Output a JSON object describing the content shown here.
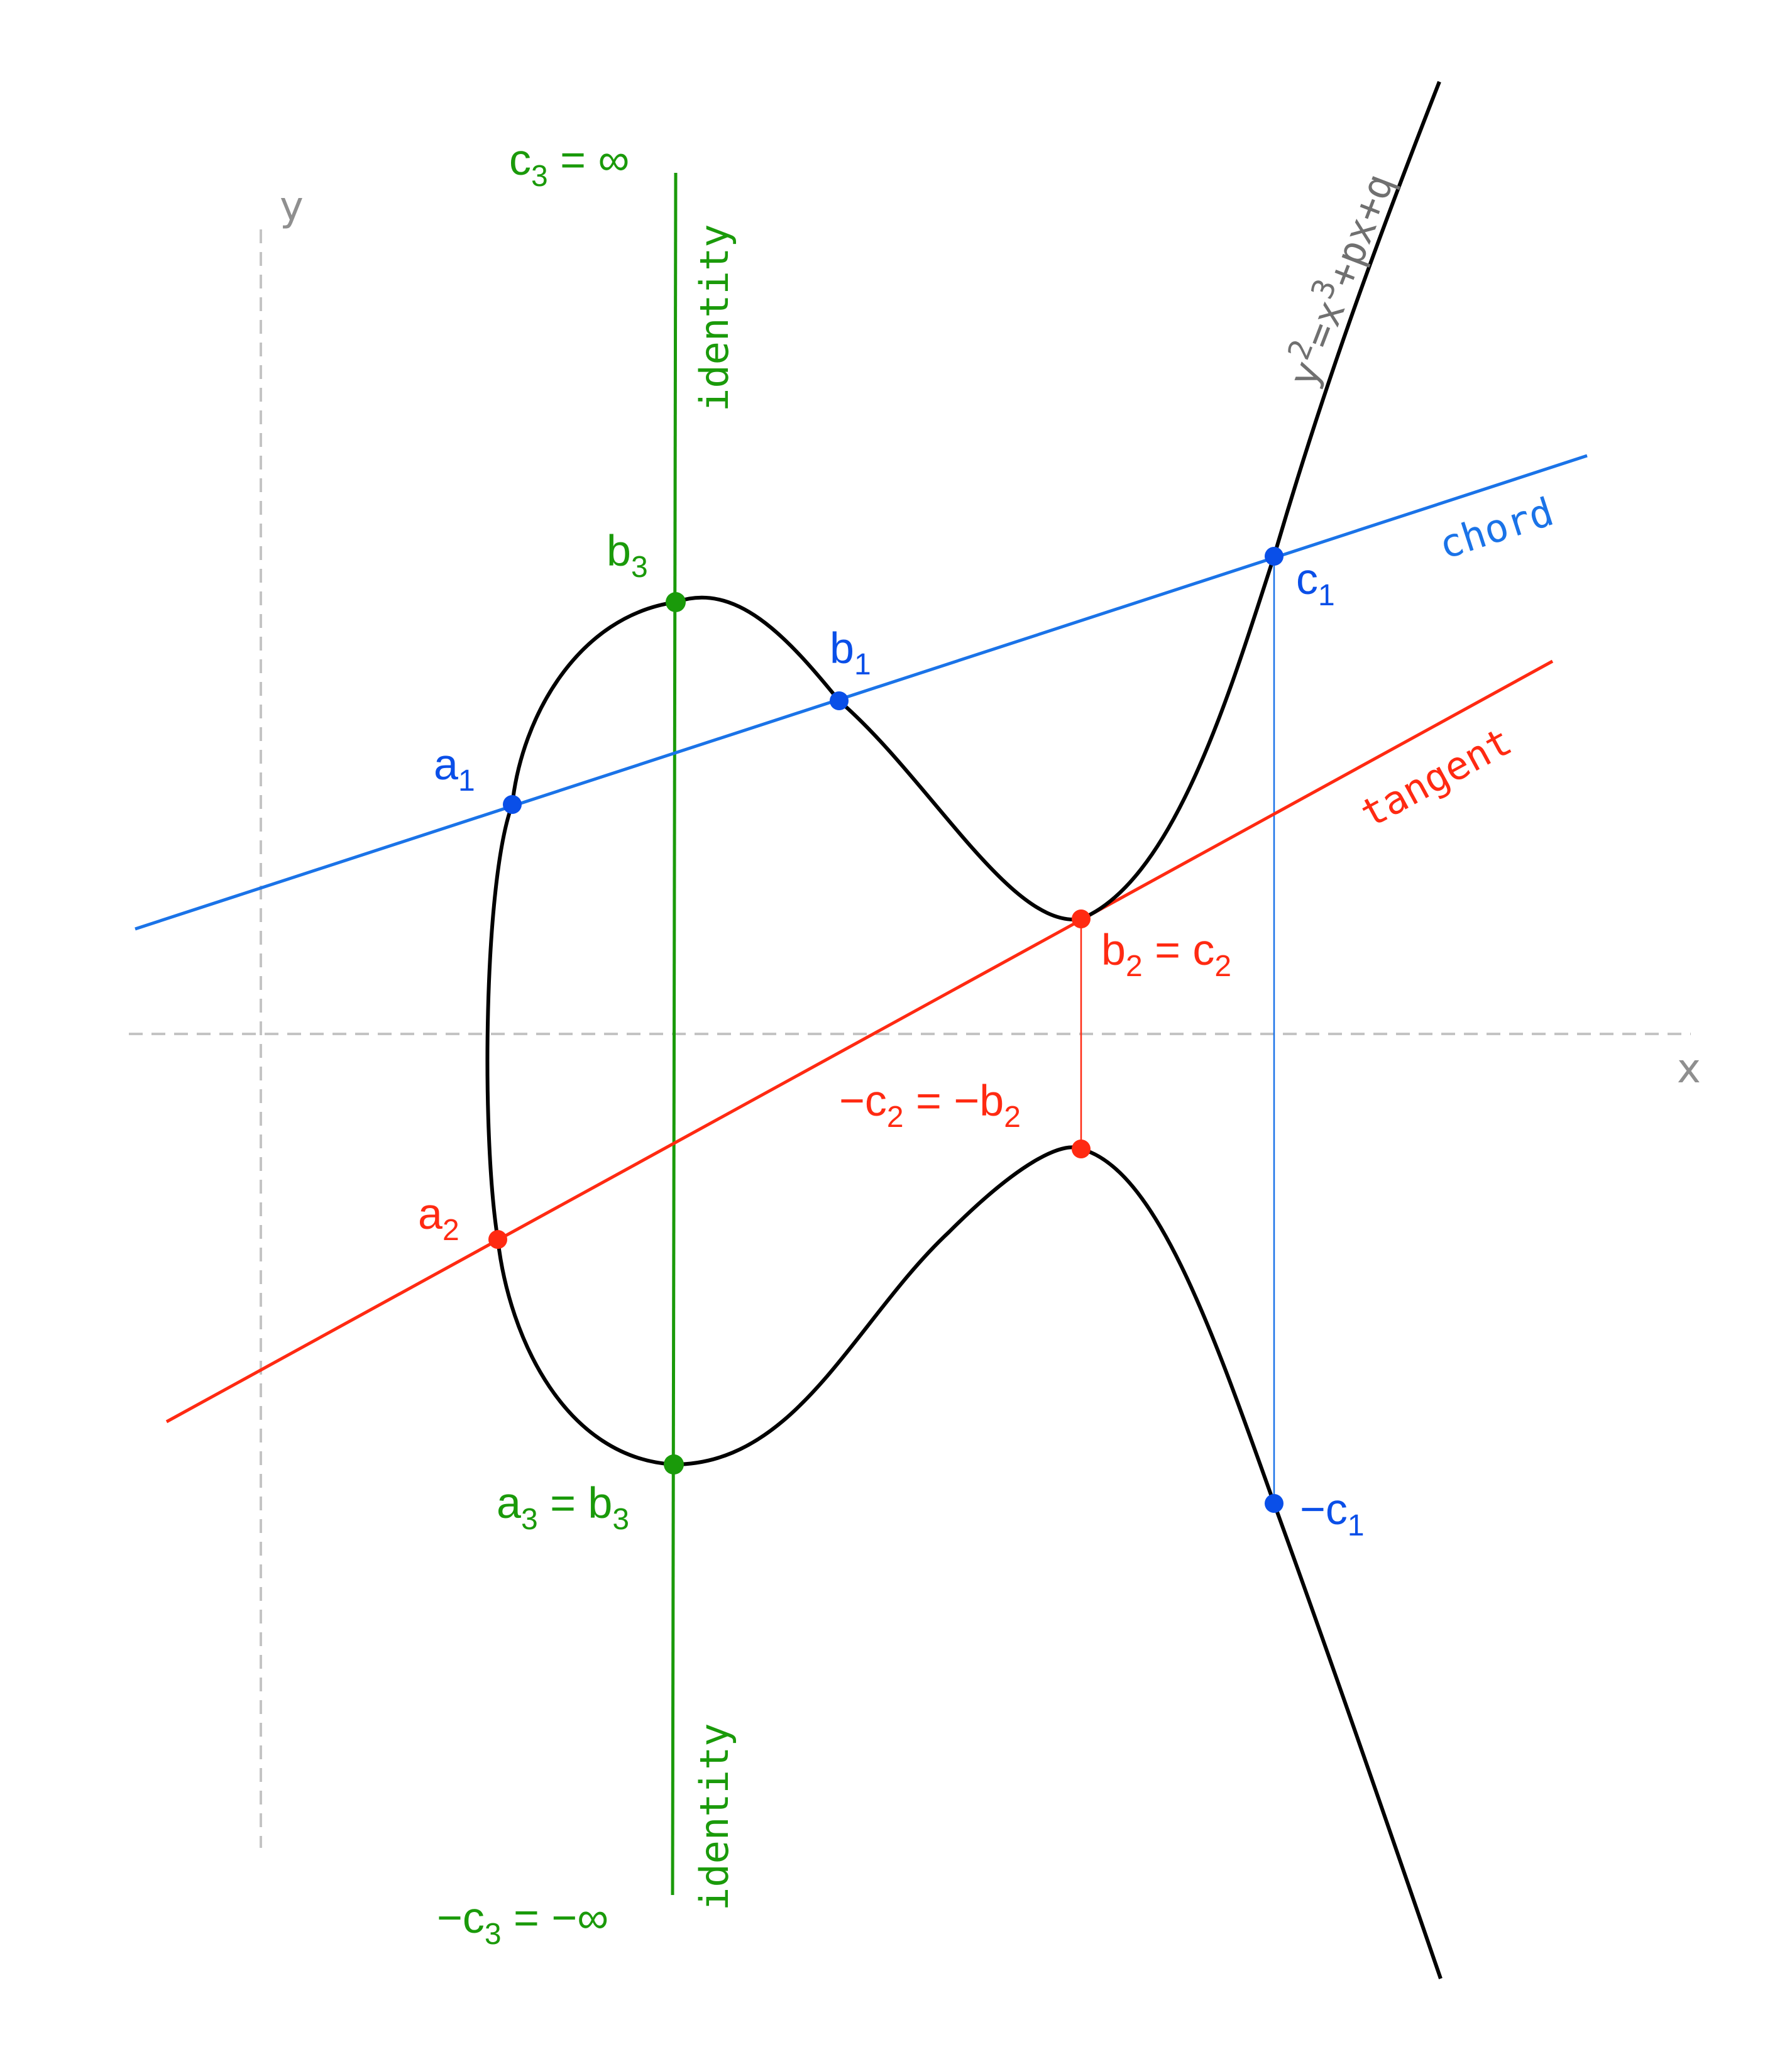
{
  "colors": {
    "curve": "#000000",
    "chord": "#1a73e8",
    "chord_point": "#0a4fe8",
    "tangent": "#ff2a12",
    "identity": "#1a9a0a",
    "axis": "#c4c4c4",
    "equation": "#707070"
  },
  "axes": {
    "x_label": "x",
    "y_label": "y"
  },
  "equation": {
    "base": "y",
    "sup1": "2",
    "mid": "=x",
    "sup2": "3",
    "tail": "+px+q"
  },
  "lines": {
    "chord": "chord",
    "tangent": "tangent",
    "identity_top": "identity",
    "identity_bottom": "identity"
  },
  "labels": {
    "a1": {
      "main": "a",
      "sub": "1"
    },
    "b1": {
      "main": "b",
      "sub": "1"
    },
    "c1": {
      "main": "c",
      "sub": "1"
    },
    "neg_c1": {
      "main": "−c",
      "sub": "1"
    },
    "a2": {
      "main": "a",
      "sub": "2"
    },
    "b2_c2": {
      "p1": "b",
      "s1": "2",
      "p2": " = c",
      "s2": "2"
    },
    "neg_c2_b2": {
      "p1": "−c",
      "s1": "2",
      "p2": " = −b",
      "s2": "2"
    },
    "b3": {
      "main": "b",
      "sub": "3"
    },
    "a3_b3": {
      "p1": "a",
      "s1": "3",
      "p2": " = b",
      "s2": "3"
    },
    "c3_inf": {
      "p1": "c",
      "s1": "3",
      "p2": " = ∞"
    },
    "neg_c3_inf": {
      "p1": "−c",
      "s1": "3",
      "p2": " = −∞"
    }
  }
}
